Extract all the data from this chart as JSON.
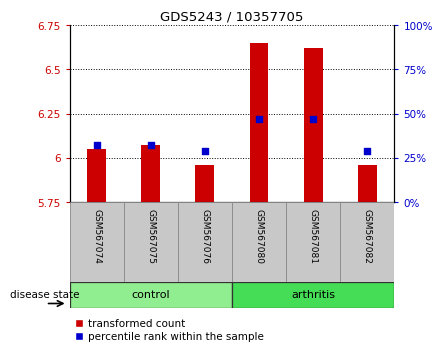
{
  "title": "GDS5243 / 10357705",
  "samples": [
    "GSM567074",
    "GSM567075",
    "GSM567076",
    "GSM567080",
    "GSM567081",
    "GSM567082"
  ],
  "red_values": [
    6.05,
    6.07,
    5.96,
    6.65,
    6.62,
    5.96
  ],
  "blue_values": [
    32,
    32,
    29,
    47,
    47,
    29
  ],
  "ylim_left": [
    5.75,
    6.75
  ],
  "ylim_right": [
    0,
    100
  ],
  "yticks_left": [
    5.75,
    6.0,
    6.25,
    6.5,
    6.75
  ],
  "yticks_right": [
    0,
    25,
    50,
    75,
    100
  ],
  "ytick_labels_left": [
    "5.75",
    "6",
    "6.25",
    "6.5",
    "6.75"
  ],
  "ytick_labels_right": [
    "0%",
    "25%",
    "50%",
    "75%",
    "100%"
  ],
  "groups": [
    {
      "label": "control",
      "indices": [
        0,
        1,
        2
      ],
      "color": "#90EE90"
    },
    {
      "label": "arthritis",
      "indices": [
        3,
        4,
        5
      ],
      "color": "#44DD55"
    }
  ],
  "disease_state_label": "disease state",
  "legend_red_label": "transformed count",
  "legend_blue_label": "percentile rank within the sample",
  "red_color": "#CC0000",
  "blue_color": "#0000CC",
  "bar_base": 5.75,
  "cell_color": "#C8C8C8",
  "cell_edge_color": "#888888",
  "group_edge_color": "#333333",
  "plot_bg": "#FFFFFF",
  "bar_width": 0.35
}
